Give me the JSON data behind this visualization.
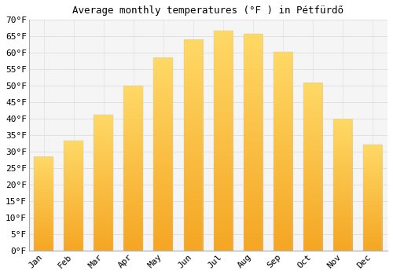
{
  "title": "Average monthly temperatures (°F ) in Pétfürdő",
  "months": [
    "Jan",
    "Feb",
    "Mar",
    "Apr",
    "May",
    "Jun",
    "Jul",
    "Aug",
    "Sep",
    "Oct",
    "Nov",
    "Dec"
  ],
  "values": [
    28.4,
    33.3,
    41.2,
    50.0,
    58.5,
    64.0,
    66.7,
    65.7,
    60.3,
    50.9,
    39.9,
    32.2
  ],
  "bar_color_bottom": "#F5A623",
  "bar_color_top": "#FFD966",
  "bar_edge_color": "#E8E8E8",
  "ylim": [
    0,
    70
  ],
  "ytick_step": 5,
  "background_color": "#ffffff",
  "plot_bg_color": "#f5f5f5",
  "grid_color": "#dddddd",
  "font_family": "monospace",
  "title_fontsize": 9,
  "tick_fontsize": 8,
  "bar_width": 0.65
}
